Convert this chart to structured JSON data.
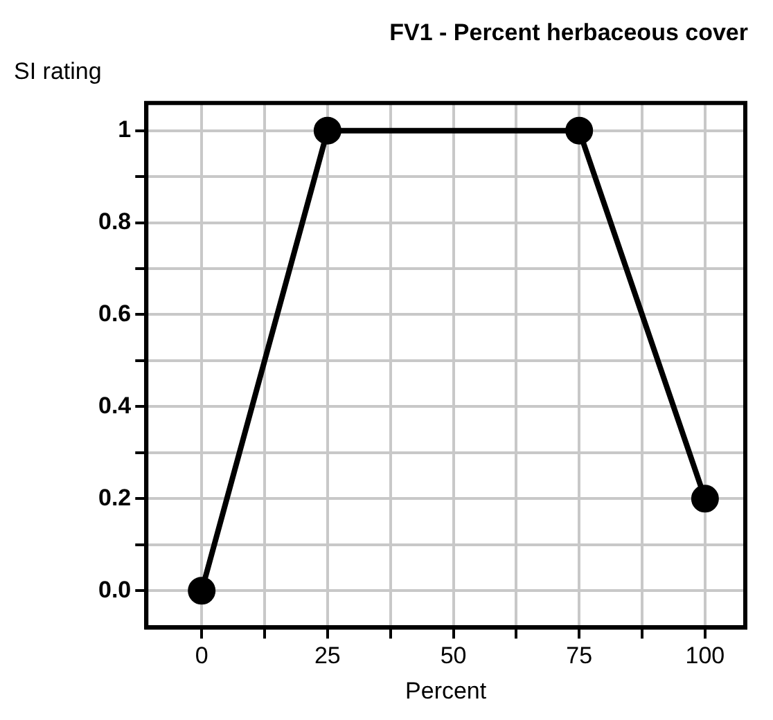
{
  "chart_data": {
    "type": "line",
    "title": "FV1 - Percent herbaceous cover",
    "xlabel": "Percent",
    "ylabel": "SI rating",
    "x": [
      0,
      25,
      75,
      100
    ],
    "series": [
      {
        "color": "#000000",
        "values": [
          0,
          1,
          1,
          0.2
        ]
      }
    ],
    "xlim": [
      -11,
      108
    ],
    "ylim": [
      -0.08,
      1.06
    ],
    "xticks": [
      0,
      {
        "value": 12.5,
        "label": null
      },
      25,
      {
        "value": 37.5,
        "label": null
      },
      50,
      {
        "value": 62.5,
        "label": null
      },
      75,
      {
        "value": 87.5,
        "label": null
      },
      100
    ],
    "yticks": [
      {
        "value": 0,
        "label": "0.0"
      },
      {
        "value": 0.1,
        "label": null
      },
      0.2,
      {
        "value": 0.3,
        "label": null
      },
      0.4,
      {
        "value": 0.5,
        "label": null
      },
      0.6,
      {
        "value": 0.7,
        "label": null
      },
      0.8,
      {
        "value": 0.9,
        "label": null
      },
      1
    ],
    "grid": true,
    "legend": false,
    "marker": "circle",
    "line_style": "solid"
  }
}
